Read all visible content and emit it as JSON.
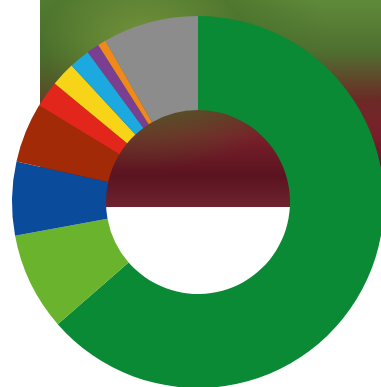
{
  "chart_data": {
    "type": "pie",
    "values": [
      63.6,
      8.5,
      6.4,
      5.2,
      2.3,
      2.1,
      1.8,
      1.1,
      0.7,
      8.3
    ],
    "colors": [
      "#0b8a35",
      "#6ab42d",
      "#0a4b9c",
      "#a22a06",
      "#e3261b",
      "#f7d417",
      "#1ba9df",
      "#7b3f91",
      "#ef8a1a",
      "#8c8c8c"
    ]
  }
}
